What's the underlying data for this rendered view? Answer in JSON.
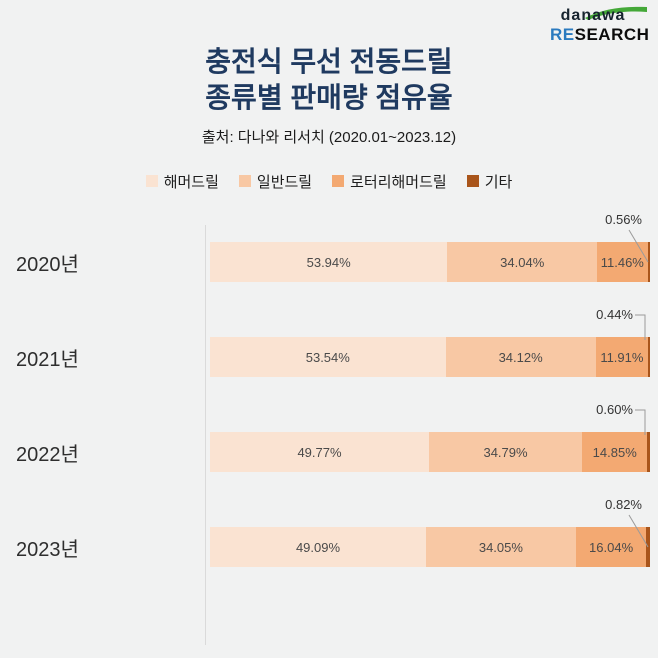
{
  "logo": {
    "brand": "danawa",
    "research_prefix": "RE",
    "research_suffix": "SEARCH"
  },
  "header": {
    "title_line1": "충전식 무선 전동드릴",
    "title_line2": "종류별 판매량 점유율",
    "source": "출처: 다나와 리서치 (2020.01~2023.12)"
  },
  "colors": {
    "background": "#F1F2F2",
    "title": "#1F3A60",
    "axis_line": "#DADADA",
    "leader_line": "#9B9B9B",
    "value_label": "#4A4A4A",
    "logo_green": "#44A838",
    "logo_blue": "#2A7ABF"
  },
  "legend": {
    "items": [
      {
        "label": "해머드릴",
        "color": "#FAE3D2"
      },
      {
        "label": "일반드릴",
        "color": "#F8C8A4"
      },
      {
        "label": "로터리해머드릴",
        "color": "#F3A972"
      },
      {
        "label": "기타",
        "color": "#A9551B"
      }
    ]
  },
  "chart_data": {
    "type": "bar",
    "orientation": "horizontal-stacked",
    "title": "충전식 무선 전동드릴 종류별 판매량 점유율",
    "xlabel": "",
    "ylabel": "",
    "xlim": [
      0,
      100
    ],
    "grid": false,
    "legend_position": "top",
    "value_suffix": "%",
    "categories": [
      "2020년",
      "2021년",
      "2022년",
      "2023년"
    ],
    "series": [
      {
        "name": "해머드릴",
        "color": "#FAE3D2",
        "values": [
          53.94,
          53.54,
          49.77,
          49.09
        ]
      },
      {
        "name": "일반드릴",
        "color": "#F8C8A4",
        "values": [
          34.04,
          34.12,
          34.79,
          34.05
        ]
      },
      {
        "name": "로터리해머드릴",
        "color": "#F3A972",
        "values": [
          11.46,
          11.91,
          14.85,
          16.04
        ]
      },
      {
        "name": "기타",
        "color": "#A9551B",
        "values": [
          0.56,
          0.44,
          0.6,
          0.82
        ]
      }
    ]
  }
}
